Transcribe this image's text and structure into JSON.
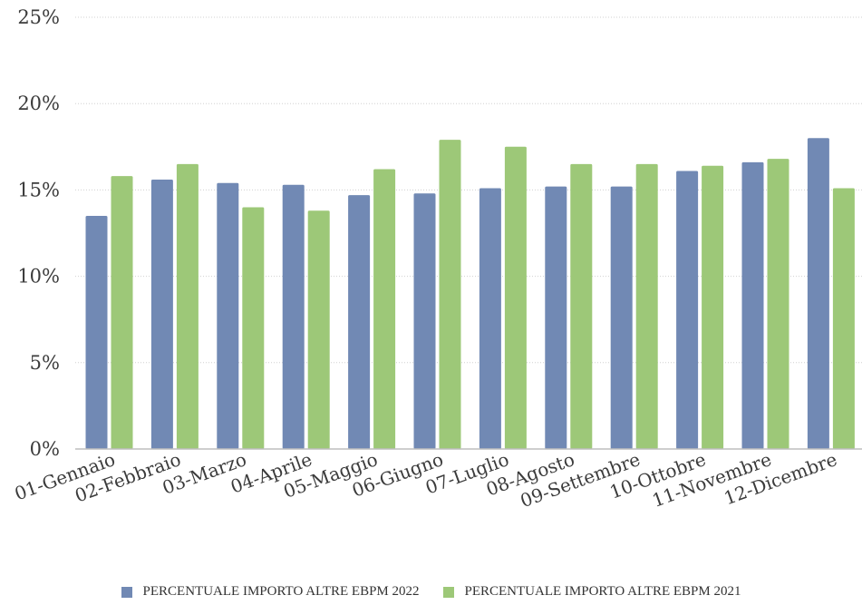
{
  "colors": {
    "series_2022": "#7189b4",
    "series_2021": "#9dc878",
    "grid": "#d0d0d0",
    "axis": "#bdbdbd"
  },
  "chart_data": {
    "type": "bar",
    "categories": [
      "01-Gennaio",
      "02-Febbraio",
      "03-Marzo",
      "04-Aprile",
      "05-Maggio",
      "06-Giugno",
      "07-Luglio",
      "08-Agosto",
      "09-Settembre",
      "10-Ottobre",
      "11-Novembre",
      "12-Dicembre"
    ],
    "series": [
      {
        "name": "PERCENTUALE IMPORTO ALTRE EBPM 2022",
        "values": [
          13.5,
          15.6,
          15.4,
          15.3,
          14.7,
          14.8,
          15.1,
          15.2,
          15.2,
          16.1,
          16.6,
          18.0
        ]
      },
      {
        "name": "PERCENTUALE IMPORTO ALTRE EBPM 2021",
        "values": [
          15.8,
          16.5,
          14.0,
          13.8,
          16.2,
          17.9,
          17.5,
          16.5,
          16.5,
          16.4,
          16.8,
          15.1
        ]
      }
    ],
    "yticks": [
      "0%",
      "5%",
      "10%",
      "15%",
      "20%",
      "25%"
    ],
    "ylim": [
      0,
      25
    ],
    "grid": true,
    "legend_position": "bottom"
  }
}
